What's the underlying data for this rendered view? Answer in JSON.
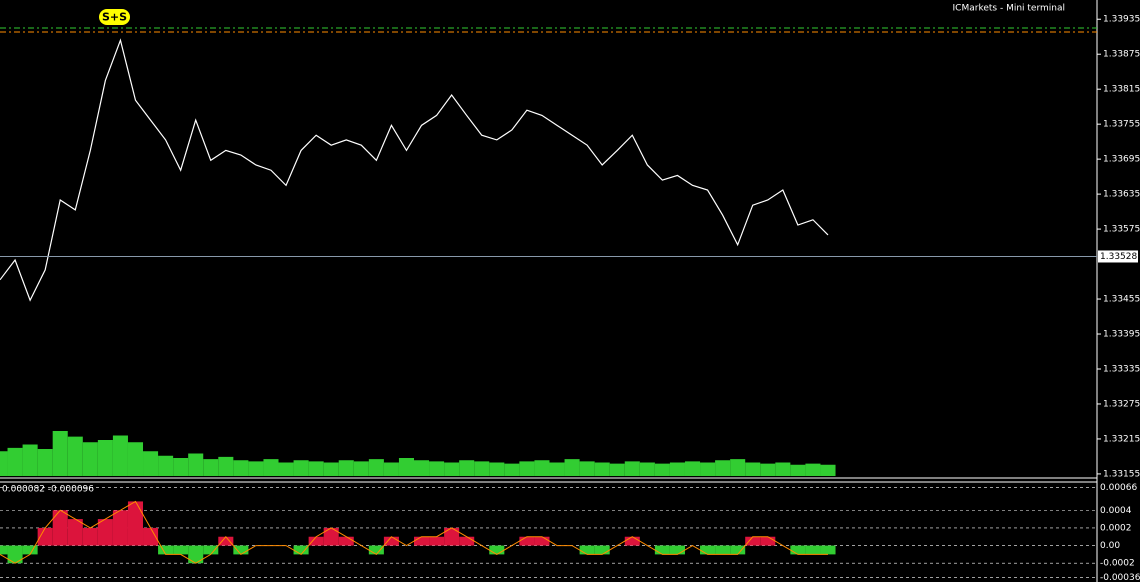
{
  "terminal_label": "ICMarkets - Mini terminal",
  "signal_badge": "S+S",
  "chart_data": [
    {
      "type": "line",
      "series": [
        {
          "name": "Price",
          "color": "#ffffff",
          "values": [
            1.33488,
            1.33522,
            1.33453,
            1.33505,
            1.33625,
            1.33608,
            1.3371,
            1.3383,
            1.33899,
            1.33796,
            1.33762,
            1.33728,
            1.33676,
            1.33762,
            1.33693,
            1.3371,
            1.33702,
            1.33685,
            1.33676,
            1.3365,
            1.3371,
            1.33736,
            1.33719,
            1.33728,
            1.33719,
            1.33693,
            1.33753,
            1.3371,
            1.33753,
            1.3377,
            1.33805,
            1.3377,
            1.33736,
            1.33728,
            1.33745,
            1.33779,
            1.3377,
            1.33753,
            1.33736,
            1.33719,
            1.33685,
            1.3371,
            1.33736,
            1.33685,
            1.33659,
            1.33667,
            1.3365,
            1.33642,
            1.33599,
            1.33548,
            1.33616,
            1.33625,
            1.33642,
            1.33582,
            1.33591,
            1.33565
          ]
        },
        {
          "name": "Volume",
          "color": "#32cd32",
          "values": [
            22,
            25,
            28,
            24,
            40,
            35,
            30,
            32,
            36,
            30,
            22,
            18,
            16,
            20,
            15,
            17,
            14,
            13,
            15,
            12,
            14,
            13,
            12,
            14,
            13,
            15,
            12,
            16,
            14,
            13,
            12,
            14,
            13,
            12,
            11,
            13,
            14,
            12,
            15,
            13,
            12,
            11,
            13,
            12,
            11,
            12,
            13,
            12,
            14,
            15,
            12,
            11,
            12,
            10,
            11,
            10
          ]
        }
      ],
      "current_price": 1.33528,
      "levels": [
        {
          "value": 1.3392,
          "color": "#32cd32"
        },
        {
          "value": 1.33913,
          "color": "#ff8c00"
        }
      ],
      "ylim": [
        1.33148,
        1.33968
      ],
      "yticks": [
        1.33935,
        1.33875,
        1.33815,
        1.33755,
        1.33695,
        1.33635,
        1.33575,
        1.33455,
        1.33395,
        1.33335,
        1.33275,
        1.33215,
        1.33155
      ]
    },
    {
      "type": "bar",
      "title": "0.000082 -0.000096",
      "values": [
        -0.0001,
        -0.0002,
        -0.0001,
        0.0002,
        0.0004,
        0.0003,
        0.0002,
        0.0003,
        0.0004,
        0.0005,
        0.0002,
        -0.0001,
        -0.0001,
        -0.0002,
        -0.0001,
        0.0001,
        -0.0001,
        0.0,
        0.0,
        0.0,
        -0.0001,
        0.0001,
        0.0002,
        0.0001,
        0.0,
        -0.0001,
        0.0001,
        0.0,
        0.0001,
        0.0001,
        0.0002,
        0.0001,
        0.0,
        -0.0001,
        0.0,
        0.0001,
        0.0001,
        0.0,
        0.0,
        -0.0001,
        -0.0001,
        0.0,
        0.0001,
        0.0,
        -0.0001,
        -0.0001,
        0.0,
        -0.0001,
        -0.0001,
        -0.0001,
        0.0001,
        0.0001,
        0.0,
        -0.0001,
        -0.0001,
        -0.0001
      ],
      "colors": {
        "positive": "#dc143c",
        "negative": "#32cd32",
        "outline": "#ff8c00"
      },
      "ylim": [
        -0.00039,
        0.00072
      ],
      "yticks": [
        0.00066,
        0.0004,
        0.0002,
        {
          "value": 0,
          "label": "0.00"
        },
        -0.0002,
        -0.00036
      ],
      "grid": true
    }
  ]
}
